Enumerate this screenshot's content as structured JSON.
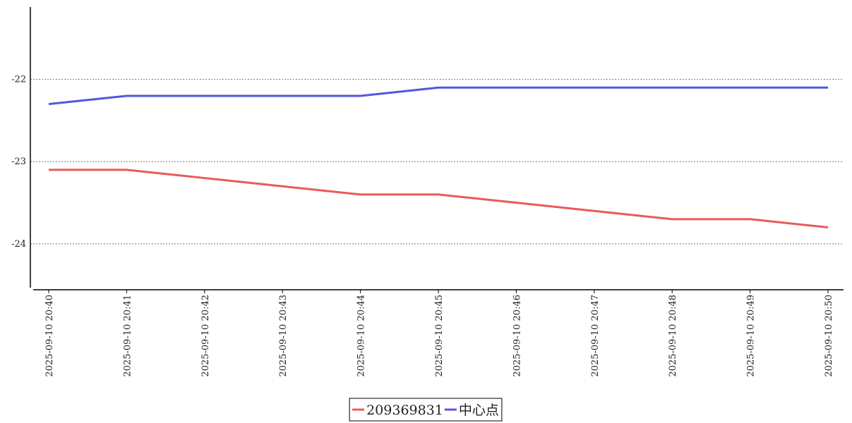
{
  "chart_data": {
    "type": "line",
    "categories": [
      "2025-09-10 20:40",
      "2025-09-10 20:41",
      "2025-09-10 20:42",
      "2025-09-10 20:43",
      "2025-09-10 20:44",
      "2025-09-10 20:45",
      "2025-09-10 20:46",
      "2025-09-10 20:47",
      "2025-09-10 20:48",
      "2025-09-10 20:49",
      "2025-09-10 20:50"
    ],
    "series": [
      {
        "name": "209369831",
        "color": "#e85a5a",
        "values": [
          -23.1,
          -23.1,
          -23.2,
          -23.3,
          -23.4,
          -23.4,
          -23.5,
          -23.6,
          -23.7,
          -23.7,
          -23.8
        ]
      },
      {
        "name": "中心点",
        "color": "#5555dd",
        "values": [
          -22.3,
          -22.2,
          -22.2,
          -22.2,
          -22.2,
          -22.1,
          -22.1,
          -22.1,
          -22.1,
          -22.1,
          -22.1
        ]
      }
    ],
    "ylim": [
      -24.55,
      -21.12
    ],
    "yticks": [
      -24,
      -23,
      -22
    ],
    "grid": true,
    "legend": "bottom"
  }
}
